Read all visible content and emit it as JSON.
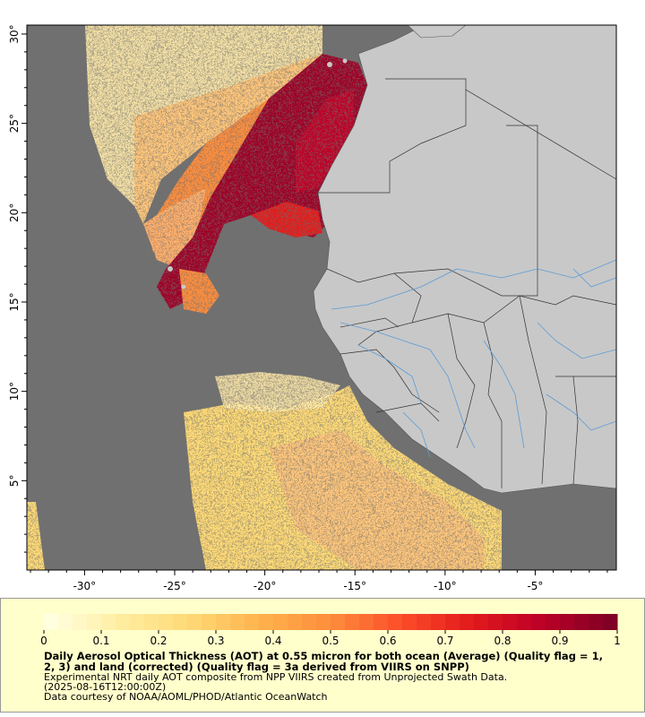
{
  "map": {
    "x_ticks": [
      "-30°",
      "-25°",
      "-20°",
      "-15°",
      "-10°",
      "-5°"
    ],
    "x_values": [
      -30,
      -25,
      -20,
      -15,
      -10,
      -5
    ],
    "y_ticks": [
      "30°",
      "25°",
      "20°",
      "15°",
      "10°",
      "5°"
    ],
    "y_values": [
      30,
      25,
      20,
      15,
      10,
      5
    ],
    "lon_range": [
      -33.2,
      -0.5
    ],
    "lat_range": [
      0,
      30.5
    ],
    "colors": {
      "ocean_nodata": "#707070",
      "land": "#c8c8c8",
      "rivers": "#5b9bd5",
      "borders": "#333333"
    }
  },
  "legend": {
    "colorbar_ticks": [
      "0",
      "0.1",
      "0.2",
      "0.3",
      "0.4",
      "0.5",
      "0.6",
      "0.7",
      "0.8",
      "0.9",
      "1"
    ],
    "colorbar_values": [
      0,
      0.1,
      0.2,
      0.3,
      0.4,
      0.5,
      0.6,
      0.7,
      0.8,
      0.9,
      1
    ],
    "colors": [
      "#ffffe0",
      "#ffeda0",
      "#fed976",
      "#feb24c",
      "#fd8d3c",
      "#fc4e2a",
      "#e31a1c",
      "#bd0026",
      "#800026"
    ],
    "title": "Daily Aerosol Optical Thickness (AOT) at 0.55 micron for both ocean (Average) (Quality flag = 1, 2, 3) and land (corrected) (Quality flag = 3a derived from VIIRS on SNPP)",
    "note1": "Experimental NRT daily AOT composite from NPP VIIRS created from Unprojected Swath Data.",
    "note2": "(2025-08-16T12:00:00Z)",
    "note3": "Data courtesy of NOAA/AOML/PHOD/Atlantic OceanWatch"
  }
}
